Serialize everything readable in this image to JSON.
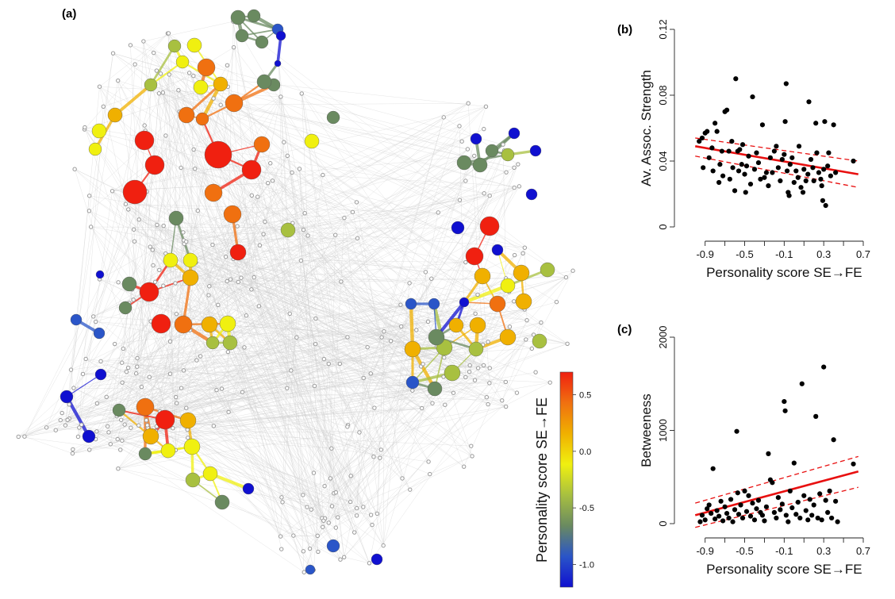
{
  "panels": {
    "a_label": "(a)",
    "b_label": "(b)",
    "c_label": "(c)"
  },
  "colorbar": {
    "label": "Personality score SE→FE",
    "ticks": [
      {
        "value": 0.5,
        "label": "0.5"
      },
      {
        "value": 0.0,
        "label": "0.0"
      },
      {
        "value": -0.5,
        "label": "-0.5"
      },
      {
        "value": -1.0,
        "label": "-1.0"
      }
    ],
    "range": [
      -1.2,
      0.7
    ],
    "colors": [
      "#1010d0",
      "#2a55c8",
      "#6a8a60",
      "#a8c040",
      "#f0f010",
      "#f0b000",
      "#f07010",
      "#f02010"
    ]
  },
  "network": {
    "edge_color": "#cfcfcf",
    "node_gray": "#9a9a9a"
  },
  "chart_data": [
    {
      "type": "scatter",
      "panel": "b",
      "title": "",
      "xlabel": "Personality score SE→FE",
      "ylabel": "Av. Assoc. Strength",
      "xlim": [
        -1.05,
        0.7
      ],
      "ylim": [
        0,
        0.12
      ],
      "xticks": [
        -0.9,
        -0.5,
        -0.1,
        0.3,
        0.7
      ],
      "xtick_labels": [
        "-0.9",
        "-0.5",
        "-0.1",
        "0.3",
        "0.7"
      ],
      "yticks": [
        0,
        0.04,
        0.08,
        0.12
      ],
      "ytick_labels": [
        "0",
        "0.04",
        "0.08",
        "0.12"
      ],
      "fit": {
        "x": [
          -1.0,
          0.65
        ],
        "y": [
          0.049,
          0.032
        ],
        "color": "#e81010"
      },
      "ci_upper": {
        "x": [
          -1.0,
          0.65
        ],
        "y": [
          0.054,
          0.04
        ]
      },
      "ci_lower": {
        "x": [
          -1.0,
          0.65
        ],
        "y": [
          0.043,
          0.024
        ]
      },
      "points": [
        [
          -0.96,
          0.052
        ],
        [
          -0.93,
          0.054
        ],
        [
          -0.92,
          0.036
        ],
        [
          -0.9,
          0.057
        ],
        [
          -0.88,
          0.058
        ],
        [
          -0.86,
          0.042
        ],
        [
          -0.83,
          0.048
        ],
        [
          -0.82,
          0.034
        ],
        [
          -0.8,
          0.063
        ],
        [
          -0.78,
          0.058
        ],
        [
          -0.76,
          0.027
        ],
        [
          -0.75,
          0.038
        ],
        [
          -0.73,
          0.046
        ],
        [
          -0.72,
          0.031
        ],
        [
          -0.7,
          0.07
        ],
        [
          -0.68,
          0.071
        ],
        [
          -0.66,
          0.046
        ],
        [
          -0.65,
          0.029
        ],
        [
          -0.63,
          0.052
        ],
        [
          -0.62,
          0.036
        ],
        [
          -0.6,
          0.022
        ],
        [
          -0.59,
          0.09
        ],
        [
          -0.57,
          0.046
        ],
        [
          -0.56,
          0.034
        ],
        [
          -0.55,
          0.047
        ],
        [
          -0.53,
          0.038
        ],
        [
          -0.52,
          0.05
        ],
        [
          -0.5,
          0.032
        ],
        [
          -0.49,
          0.021
        ],
        [
          -0.48,
          0.037
        ],
        [
          -0.46,
          0.043
        ],
        [
          -0.44,
          0.026
        ],
        [
          -0.42,
          0.079
        ],
        [
          -0.4,
          0.035
        ],
        [
          -0.38,
          0.045
        ],
        [
          -0.36,
          0.039
        ],
        [
          -0.34,
          0.029
        ],
        [
          -0.32,
          0.062
        ],
        [
          -0.3,
          0.03
        ],
        [
          -0.28,
          0.033
        ],
        [
          -0.26,
          0.025
        ],
        [
          -0.24,
          0.042
        ],
        [
          -0.22,
          0.033
        ],
        [
          -0.2,
          0.046
        ],
        [
          -0.18,
          0.049
        ],
        [
          -0.16,
          0.036
        ],
        [
          -0.14,
          0.028
        ],
        [
          -0.12,
          0.041
        ],
        [
          -0.1,
          0.044
        ],
        [
          -0.09,
          0.064
        ],
        [
          -0.08,
          0.087
        ],
        [
          -0.07,
          0.034
        ],
        [
          -0.06,
          0.021
        ],
        [
          -0.05,
          0.019
        ],
        [
          -0.04,
          0.038
        ],
        [
          -0.02,
          0.042
        ],
        [
          0.0,
          0.027
        ],
        [
          0.02,
          0.034
        ],
        [
          0.04,
          0.03
        ],
        [
          0.05,
          0.049
        ],
        [
          0.07,
          0.024
        ],
        [
          0.09,
          0.021
        ],
        [
          0.1,
          0.035
        ],
        [
          0.12,
          0.028
        ],
        [
          0.14,
          0.032
        ],
        [
          0.15,
          0.076
        ],
        [
          0.17,
          0.041
        ],
        [
          0.19,
          0.036
        ],
        [
          0.2,
          0.028
        ],
        [
          0.22,
          0.063
        ],
        [
          0.23,
          0.045
        ],
        [
          0.25,
          0.033
        ],
        [
          0.27,
          0.029
        ],
        [
          0.28,
          0.025
        ],
        [
          0.29,
          0.016
        ],
        [
          0.3,
          0.035
        ],
        [
          0.31,
          0.064
        ],
        [
          0.32,
          0.013
        ],
        [
          0.34,
          0.037
        ],
        [
          0.35,
          0.045
        ],
        [
          0.37,
          0.031
        ],
        [
          0.4,
          0.062
        ],
        [
          0.42,
          0.033
        ],
        [
          0.6,
          0.04
        ]
      ]
    },
    {
      "type": "scatter",
      "panel": "c",
      "title": "",
      "xlabel": "Personality score SE→FE",
      "ylabel": "Betweeness",
      "xlim": [
        -1.05,
        0.7
      ],
      "ylim": [
        0,
        2000
      ],
      "xticks": [
        -0.9,
        -0.5,
        -0.1,
        0.3,
        0.7
      ],
      "xtick_labels": [
        "-0.9",
        "-0.5",
        "-0.1",
        "0.3",
        "0.7"
      ],
      "yticks": [
        0,
        1000,
        2000
      ],
      "ytick_labels": [
        "0",
        "1000",
        "2000"
      ],
      "fit": {
        "x": [
          -1.0,
          0.65
        ],
        "y": [
          90,
          560
        ],
        "color": "#e81010"
      },
      "ci_upper": {
        "x": [
          -1.0,
          0.65
        ],
        "y": [
          220,
          720
        ]
      },
      "ci_lower": {
        "x": [
          -1.0,
          0.65
        ],
        "y": [
          -40,
          390
        ]
      },
      "points": [
        [
          -0.95,
          20
        ],
        [
          -0.93,
          90
        ],
        [
          -0.9,
          40
        ],
        [
          -0.88,
          160
        ],
        [
          -0.86,
          200
        ],
        [
          -0.84,
          110
        ],
        [
          -0.82,
          590
        ],
        [
          -0.8,
          50
        ],
        [
          -0.78,
          140
        ],
        [
          -0.76,
          80
        ],
        [
          -0.74,
          240
        ],
        [
          -0.72,
          30
        ],
        [
          -0.7,
          180
        ],
        [
          -0.68,
          110
        ],
        [
          -0.66,
          60
        ],
        [
          -0.64,
          260
        ],
        [
          -0.62,
          20
        ],
        [
          -0.6,
          150
        ],
        [
          -0.58,
          990
        ],
        [
          -0.57,
          330
        ],
        [
          -0.56,
          100
        ],
        [
          -0.54,
          200
        ],
        [
          -0.52,
          60
        ],
        [
          -0.5,
          350
        ],
        [
          -0.48,
          130
        ],
        [
          -0.46,
          300
        ],
        [
          -0.44,
          80
        ],
        [
          -0.42,
          220
        ],
        [
          -0.4,
          40
        ],
        [
          -0.38,
          160
        ],
        [
          -0.36,
          250
        ],
        [
          -0.34,
          120
        ],
        [
          -0.32,
          90
        ],
        [
          -0.3,
          30
        ],
        [
          -0.28,
          180
        ],
        [
          -0.26,
          750
        ],
        [
          -0.24,
          470
        ],
        [
          -0.22,
          440
        ],
        [
          -0.2,
          120
        ],
        [
          -0.18,
          60
        ],
        [
          -0.16,
          280
        ],
        [
          -0.14,
          150
        ],
        [
          -0.12,
          210
        ],
        [
          -0.1,
          1310
        ],
        [
          -0.09,
          1210
        ],
        [
          -0.08,
          90
        ],
        [
          -0.06,
          20
        ],
        [
          -0.04,
          350
        ],
        [
          -0.02,
          170
        ],
        [
          0.0,
          650
        ],
        [
          0.02,
          100
        ],
        [
          0.04,
          230
        ],
        [
          0.06,
          60
        ],
        [
          0.08,
          1500
        ],
        [
          0.1,
          300
        ],
        [
          0.12,
          140
        ],
        [
          0.14,
          40
        ],
        [
          0.16,
          260
        ],
        [
          0.18,
          90
        ],
        [
          0.2,
          200
        ],
        [
          0.22,
          1150
        ],
        [
          0.24,
          60
        ],
        [
          0.26,
          320
        ],
        [
          0.28,
          40
        ],
        [
          0.3,
          1680
        ],
        [
          0.32,
          250
        ],
        [
          0.34,
          120
        ],
        [
          0.36,
          350
        ],
        [
          0.38,
          60
        ],
        [
          0.4,
          900
        ],
        [
          0.42,
          240
        ],
        [
          0.44,
          20
        ],
        [
          0.6,
          640
        ]
      ]
    }
  ]
}
